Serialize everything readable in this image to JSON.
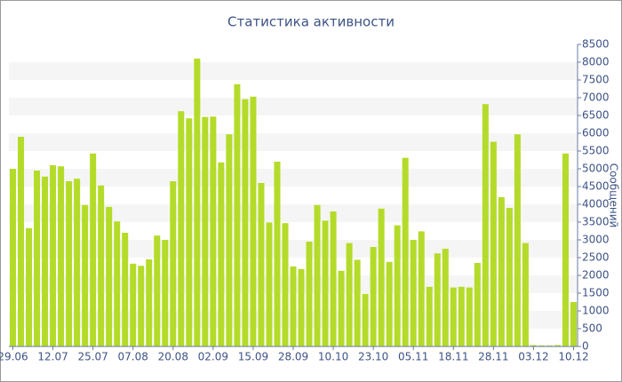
{
  "chart_data": {
    "type": "bar",
    "title": "Статистика активности",
    "y_label": "Сообщений",
    "categories": [
      "29.06",
      null,
      null,
      null,
      null,
      "12.07",
      null,
      null,
      null,
      null,
      "25.07",
      null,
      null,
      null,
      null,
      "07.08",
      null,
      null,
      null,
      null,
      "20.08",
      null,
      null,
      null,
      null,
      "02.09",
      null,
      null,
      null,
      null,
      "15.09",
      null,
      null,
      null,
      null,
      "28.09",
      null,
      null,
      null,
      null,
      "10.10",
      null,
      null,
      null,
      null,
      "23.10",
      null,
      null,
      null,
      null,
      "05.11",
      null,
      null,
      null,
      null,
      "18.11",
      null,
      null,
      null,
      null,
      "28.11",
      null,
      null,
      null,
      null,
      "03.12",
      null,
      null,
      null,
      null,
      "10.12"
    ],
    "values": [
      5000,
      5900,
      3330,
      4950,
      4780,
      5100,
      5070,
      4650,
      4720,
      3980,
      5430,
      4530,
      3930,
      3520,
      3200,
      2330,
      2270,
      2450,
      3120,
      3000,
      4650,
      6620,
      6420,
      8100,
      6460,
      6470,
      5180,
      5970,
      7380,
      6960,
      7030,
      4600,
      3490,
      5200,
      3470,
      2250,
      2180,
      2950,
      3980,
      3540,
      3800,
      2130,
      2910,
      2440,
      1480,
      2800,
      3880,
      2380,
      3410,
      5310,
      3000,
      3240,
      1680,
      2620,
      2750,
      1660,
      1680,
      1660,
      2350,
      6820,
      5760,
      4200,
      3900,
      5970,
      2910,
      40,
      30,
      30,
      40,
      5430,
      1250
    ],
    "color": "#b5db2a",
    "ylim": [
      0,
      8500
    ],
    "yticks": [
      0,
      500,
      1000,
      1500,
      2000,
      2500,
      3000,
      3500,
      4000,
      4500,
      5000,
      5500,
      6000,
      6500,
      7000,
      7500,
      8000,
      8500
    ],
    "grid": true
  }
}
